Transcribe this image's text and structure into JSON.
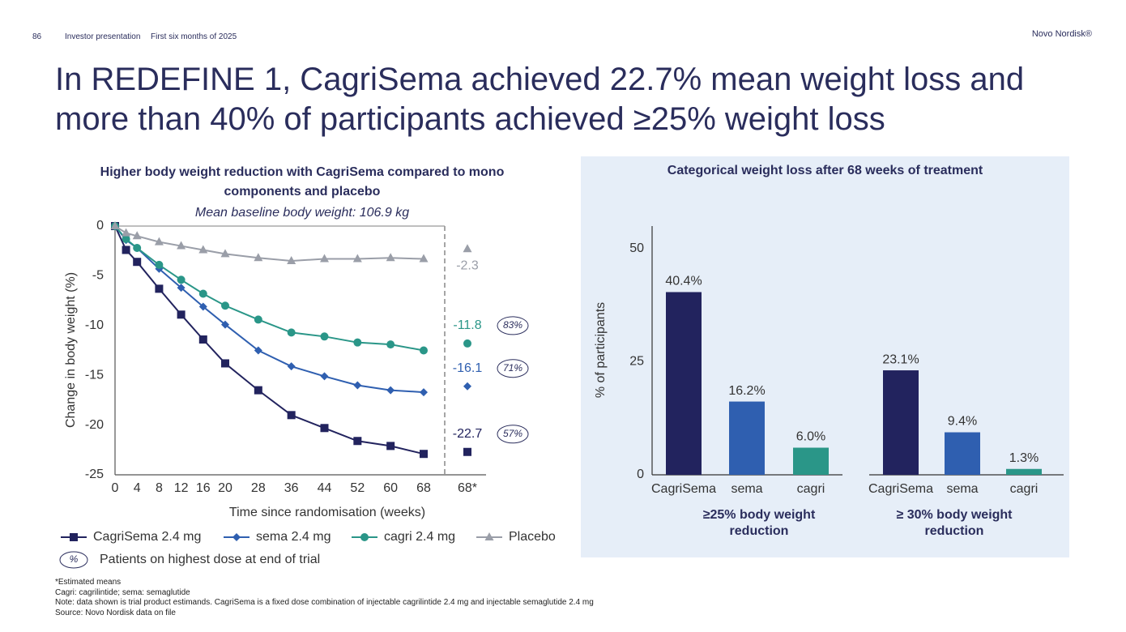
{
  "header": {
    "page_number": "86",
    "section": "Investor presentation",
    "period": "First six months of 2025",
    "brand": "Novo Nordisk®"
  },
  "title": "In REDEFINE 1, CagriSema achieved 22.7% mean weight loss and more than 40% of participants achieved ≥25% weight loss",
  "chart_data": [
    {
      "type": "line",
      "title": "Higher body weight reduction with CagriSema compared to mono components and placebo",
      "subtitle": "Mean baseline body weight: 106.9 kg",
      "x_label": "Time since randomisation (weeks)",
      "y_label": "Change in body weight (%)",
      "x": [
        0,
        2,
        4,
        8,
        12,
        16,
        20,
        28,
        36,
        44,
        52,
        60,
        68
      ],
      "xlim": [
        0,
        68
      ],
      "xticks": [
        0,
        4,
        8,
        12,
        16,
        20,
        28,
        36,
        44,
        52,
        60,
        68
      ],
      "estimate_tick": "68*",
      "ylim": [
        -25,
        0
      ],
      "yticks": [
        0,
        -5,
        -10,
        -15,
        -20,
        -25
      ],
      "series": [
        {
          "name": "CagriSema 2.4 mg",
          "color": "#22235e",
          "marker": "square",
          "values": [
            0,
            -2.4,
            -3.6,
            -6.3,
            -8.9,
            -11.4,
            -13.8,
            -16.5,
            -19.0,
            -20.3,
            -21.6,
            -22.1,
            -22.9
          ],
          "estimate": -22.7,
          "highest_dose": 57,
          "highest_dose_label": "57%"
        },
        {
          "name": "sema 2.4 mg",
          "color": "#2f5fb0",
          "marker": "diamond",
          "values": [
            0,
            -1.4,
            -2.2,
            -4.3,
            -6.2,
            -8.1,
            -9.9,
            -12.5,
            -14.1,
            -15.1,
            -16.0,
            -16.5,
            -16.7
          ],
          "estimate": -16.1,
          "highest_dose": 71,
          "highest_dose_label": "71%"
        },
        {
          "name": "cagri 2.4 mg",
          "color": "#2a9688",
          "marker": "circle",
          "values": [
            0,
            -1.3,
            -2.2,
            -3.9,
            -5.4,
            -6.8,
            -8.0,
            -9.4,
            -10.7,
            -11.1,
            -11.7,
            -11.9,
            -12.5
          ],
          "estimate": -11.8,
          "highest_dose": 83,
          "highest_dose_label": "83%"
        },
        {
          "name": "Placebo",
          "color": "#9a9ea8",
          "marker": "triangle",
          "values": [
            0,
            -0.7,
            -1.0,
            -1.6,
            -2.0,
            -2.4,
            -2.8,
            -3.2,
            -3.5,
            -3.3,
            -3.3,
            -3.2,
            -3.3
          ],
          "estimate": -2.3
        }
      ],
      "badge_legend": {
        "symbol": "%",
        "label": "Patients on highest dose at end of trial"
      }
    },
    {
      "type": "grouped-bar",
      "title": "Categorical weight loss after 68 weeks of treatment",
      "y_label": "% of participants",
      "ylim": [
        0,
        55
      ],
      "yticks": [
        0,
        25,
        50
      ],
      "categories": [
        "CagriSema",
        "sema",
        "cagri"
      ],
      "colors": [
        "#22235e",
        "#2f5fb0",
        "#2a9688"
      ],
      "groups": [
        {
          "name": "≥25% body weight reduction",
          "values": [
            40.4,
            16.2,
            6.0
          ],
          "value_labels": [
            "40.4%",
            "16.2%",
            "6.0%"
          ]
        },
        {
          "name": "≥ 30% body weight reduction",
          "values": [
            23.1,
            9.4,
            1.3
          ],
          "value_labels": [
            "23.1%",
            "9.4%",
            "1.3%"
          ]
        }
      ]
    }
  ],
  "footnotes": [
    "*Estimated means",
    "Cagri: cagrilintide; sema: semaglutide",
    "Note: data shown is trial product estimands. CagriSema is a fixed dose combination of injectable cagrilintide 2.4 mg and injectable semaglutide 2.4 mg",
    "Source: Novo Nordisk data on file"
  ]
}
